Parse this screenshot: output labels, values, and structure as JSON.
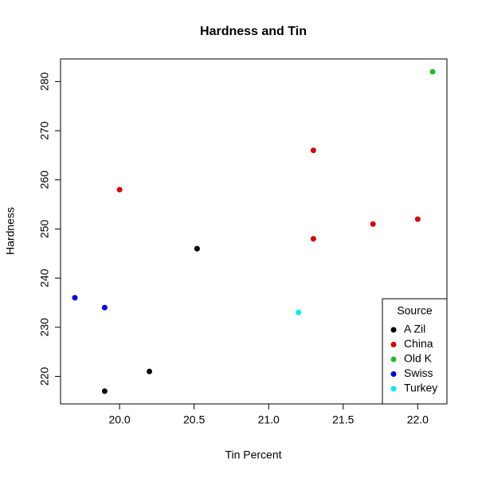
{
  "chart_data": {
    "type": "scatter",
    "title": "Hardness and Tin",
    "x_label": "Tin Percent",
    "y_label": "Hardness",
    "legend_title": "Source",
    "legend_position": "bottom-right",
    "xlim": [
      19.604,
      22.196
    ],
    "xticks": [
      {
        "value": 20,
        "label": "20.0"
      },
      20.5,
      {
        "value": 21,
        "label": "21.0"
      },
      21.5,
      {
        "value": 22,
        "label": "22.0"
      }
    ],
    "ylim": [
      214.4,
      284.6
    ],
    "yticks": [
      220,
      230,
      240,
      250,
      260,
      270,
      280
    ],
    "series": [
      {
        "name": "A Zil",
        "color": "#000000",
        "x": [
          19.9,
          20.2,
          20.52
        ],
        "values": [
          217,
          221,
          246
        ]
      },
      {
        "name": "China",
        "color": "#df0000",
        "x": [
          20.0,
          21.3,
          21.3,
          21.7,
          22.0
        ],
        "values": [
          258,
          266,
          248,
          251,
          252
        ]
      },
      {
        "name": "Old K",
        "color": "#22bb22",
        "x": [
          22.1
        ],
        "values": [
          282
        ]
      },
      {
        "name": "Swiss",
        "color": "#0000ee",
        "x": [
          19.7,
          19.9
        ],
        "values": [
          236,
          234
        ]
      },
      {
        "name": "Turkey",
        "color": "#00eeee",
        "x": [
          21.2
        ],
        "values": [
          233
        ]
      }
    ]
  }
}
